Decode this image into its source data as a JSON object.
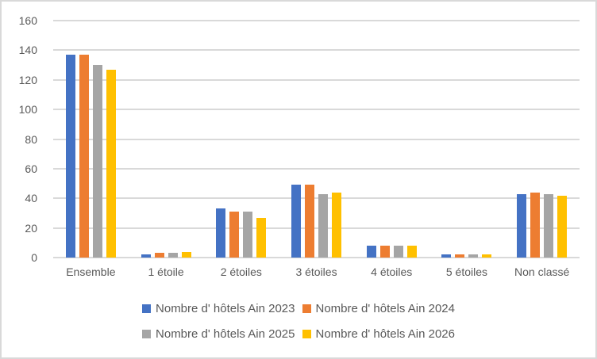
{
  "colors": {
    "background": "#FFFFFF",
    "border": "#D9D9D9",
    "gridline": "#D9D9D9",
    "axis_line": "#D9D9D9",
    "text": "#595959"
  },
  "chart_data": {
    "type": "bar",
    "title": "",
    "xlabel": "",
    "ylabel": "",
    "categories": [
      "Ensemble",
      "1 étoile",
      "2 étoiles",
      "3 étoiles",
      "4 étoiles",
      "5 étoiles",
      "Non classé"
    ],
    "series": [
      {
        "name": "Nombre d' hôtels Ain 2023",
        "color": "#4472C4",
        "values": [
          137,
          2,
          33,
          49,
          8,
          2,
          43
        ]
      },
      {
        "name": "Nombre d' hôtels Ain 2024",
        "color": "#ED7D31",
        "values": [
          137,
          3,
          31,
          49,
          8,
          2,
          44
        ]
      },
      {
        "name": "Nombre d' hôtels Ain 2025",
        "color": "#A5A5A5",
        "values": [
          130,
          3,
          31,
          43,
          8,
          2,
          43
        ]
      },
      {
        "name": "Nombre d' hôtels Ain 2026",
        "color": "#FFC000",
        "values": [
          127,
          4,
          27,
          44,
          8,
          2,
          42
        ]
      }
    ],
    "ylim": [
      0,
      160
    ],
    "yticks": [
      0,
      20,
      40,
      60,
      80,
      100,
      120,
      140,
      160
    ],
    "grid": true,
    "legend_position": "bottom",
    "legend_rows": [
      [
        0,
        1
      ],
      [
        2,
        3
      ]
    ]
  }
}
